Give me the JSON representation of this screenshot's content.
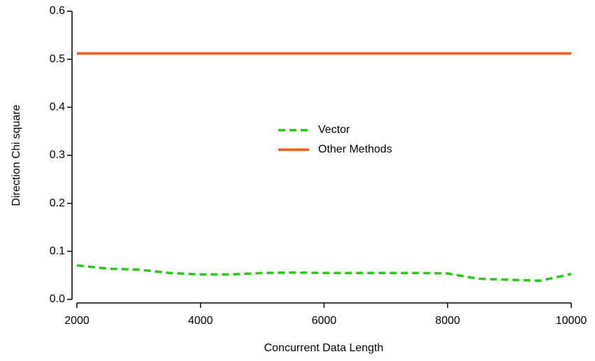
{
  "chart_data": {
    "type": "line",
    "x_label": "Concurrent Data Length",
    "y_label": "Direction Chi square",
    "x": [
      2000,
      2500,
      3000,
      3500,
      4000,
      4500,
      5000,
      5500,
      6000,
      6500,
      7000,
      7500,
      8000,
      8500,
      9000,
      9500,
      10000
    ],
    "series": [
      {
        "name": "Vector",
        "color": "#22cc11",
        "dash": true,
        "values": [
          0.071,
          0.064,
          0.062,
          0.055,
          0.052,
          0.052,
          0.055,
          0.056,
          0.055,
          0.055,
          0.055,
          0.055,
          0.054,
          0.043,
          0.041,
          0.039,
          0.053
        ]
      },
      {
        "name": "Other Methods",
        "color": "#ff5511",
        "dash": false,
        "values": [
          0.512,
          0.512,
          0.512,
          0.512,
          0.512,
          0.512,
          0.512,
          0.512,
          0.512,
          0.512,
          0.512,
          0.512,
          0.512,
          0.512,
          0.512,
          0.512,
          0.512
        ]
      }
    ],
    "xlim": [
      2000,
      10000
    ],
    "xticks": [
      2000,
      4000,
      6000,
      8000,
      10000
    ],
    "ylim": [
      0,
      0.6
    ],
    "yticks": [
      {
        "value": 0,
        "label": "0.0"
      },
      0.1,
      0.2,
      0.3,
      0.4,
      0.5,
      0.6
    ],
    "grid": false,
    "legend": "center"
  }
}
